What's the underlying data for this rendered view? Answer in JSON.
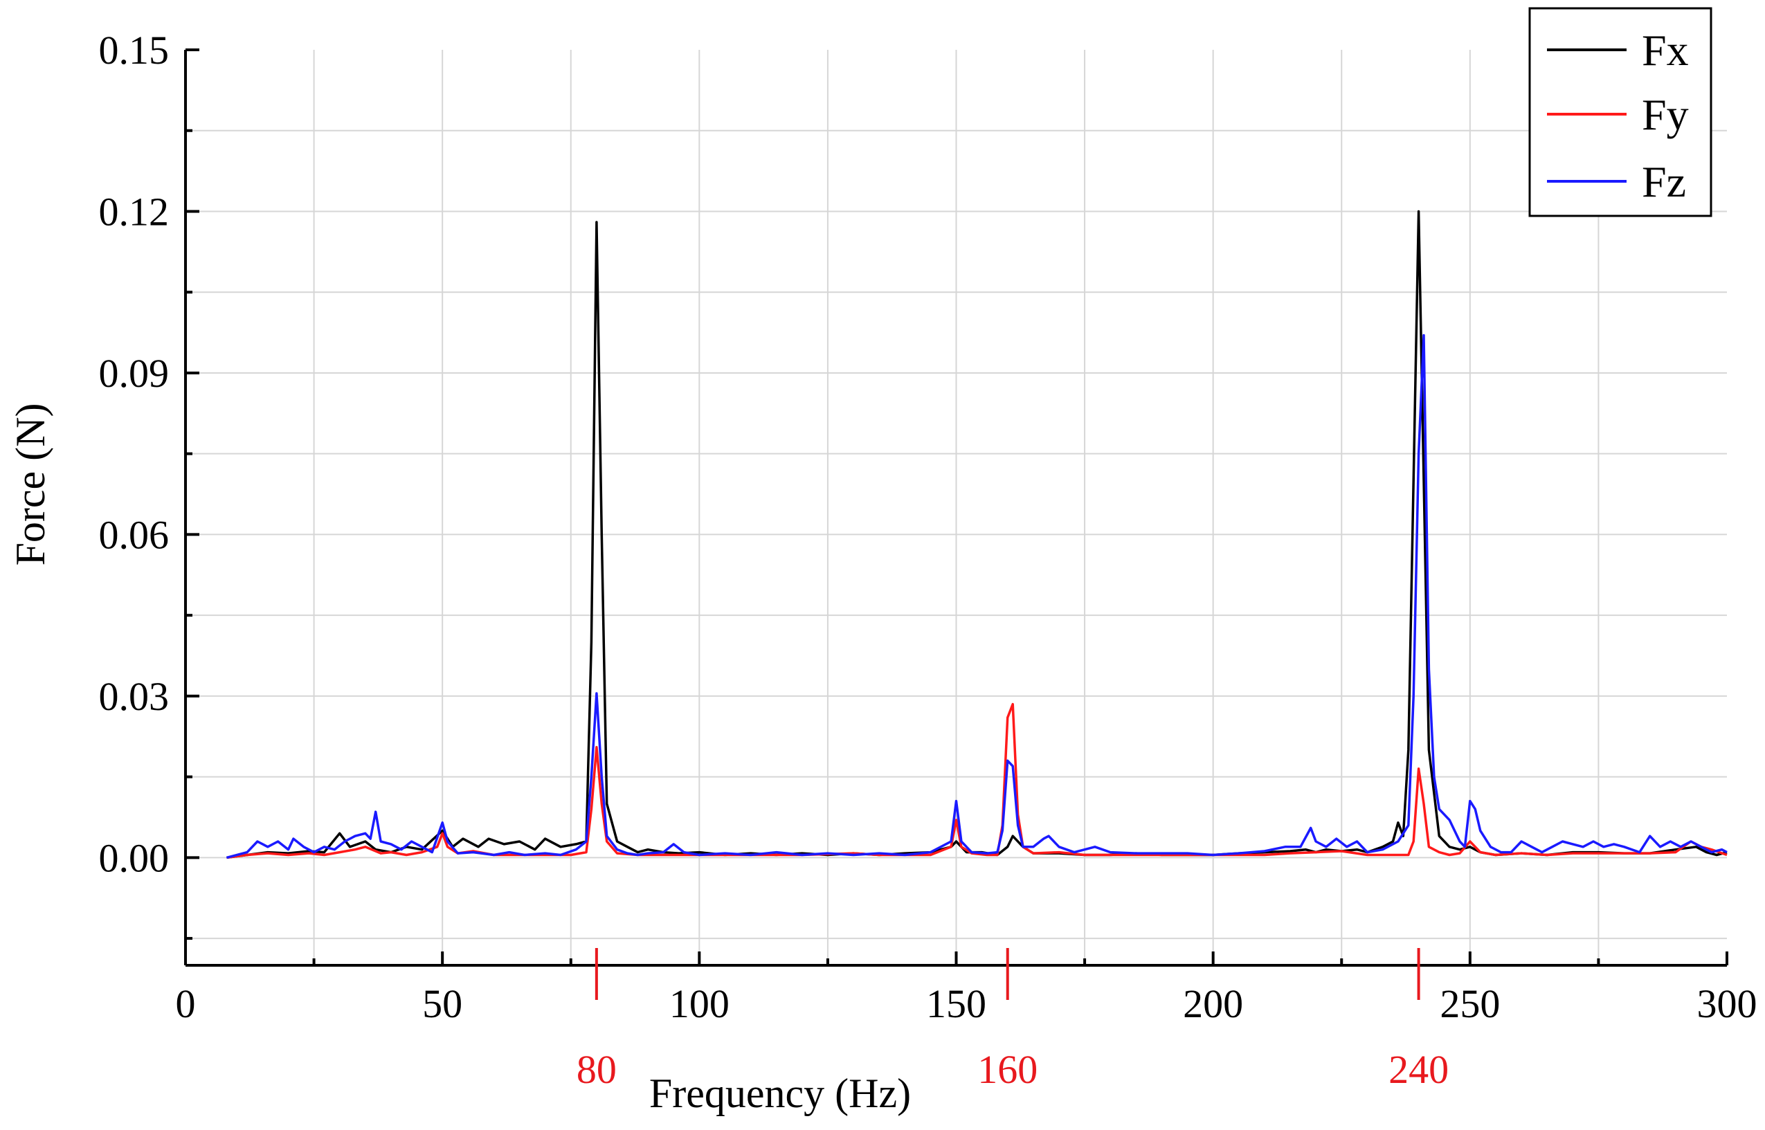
{
  "chart_data": {
    "type": "line",
    "xlabel": "Frequency (Hz)",
    "ylabel": "Force (N)",
    "xlim": [
      0,
      300
    ],
    "ylim": [
      -0.02,
      0.15
    ],
    "grid": true,
    "legend_position": "top-right",
    "x_ticks": [
      0,
      50,
      100,
      150,
      200,
      250,
      300
    ],
    "x_tick_labels": [
      "0",
      "50",
      "100",
      "150",
      "200",
      "250",
      "300"
    ],
    "y_ticks": [
      0.0,
      0.03,
      0.06,
      0.09,
      0.12,
      0.15
    ],
    "y_tick_labels": [
      "0.00",
      "0.03",
      "0.06",
      "0.09",
      "0.12",
      "0.15"
    ],
    "highlight_markers": [
      {
        "x": 80,
        "label": "80",
        "color": "#e8191e"
      },
      {
        "x": 160,
        "label": "160",
        "color": "#e8191e"
      },
      {
        "x": 240,
        "label": "240",
        "color": "#e8191e"
      }
    ],
    "series": [
      {
        "name": "Fx",
        "color": "#000000",
        "points": [
          [
            8,
            0
          ],
          [
            12,
            0.0005
          ],
          [
            16,
            0.001
          ],
          [
            20,
            0.0008
          ],
          [
            24,
            0.0012
          ],
          [
            27,
            0.001
          ],
          [
            30,
            0.0045
          ],
          [
            32,
            0.002
          ],
          [
            35,
            0.003
          ],
          [
            37,
            0.0015
          ],
          [
            40,
            0.001
          ],
          [
            43,
            0.002
          ],
          [
            46,
            0.0015
          ],
          [
            50,
            0.005
          ],
          [
            52,
            0.002
          ],
          [
            54,
            0.0035
          ],
          [
            57,
            0.002
          ],
          [
            59,
            0.0035
          ],
          [
            62,
            0.0025
          ],
          [
            65,
            0.003
          ],
          [
            68,
            0.0015
          ],
          [
            70,
            0.0035
          ],
          [
            73,
            0.002
          ],
          [
            76,
            0.0025
          ],
          [
            78,
            0.003
          ],
          [
            79,
            0.04
          ],
          [
            80,
            0.118
          ],
          [
            81,
            0.06
          ],
          [
            82,
            0.01
          ],
          [
            84,
            0.003
          ],
          [
            86,
            0.002
          ],
          [
            88,
            0.001
          ],
          [
            90,
            0.0015
          ],
          [
            93,
            0.001
          ],
          [
            96,
            0.0008
          ],
          [
            100,
            0.001
          ],
          [
            105,
            0.0005
          ],
          [
            110,
            0.0008
          ],
          [
            115,
            0.0005
          ],
          [
            120,
            0.0008
          ],
          [
            125,
            0.0005
          ],
          [
            130,
            0.0008
          ],
          [
            135,
            0.0005
          ],
          [
            140,
            0.0008
          ],
          [
            145,
            0.001
          ],
          [
            149,
            0.002
          ],
          [
            150,
            0.003
          ],
          [
            152,
            0.001
          ],
          [
            155,
            0.001
          ],
          [
            158,
            0.0005
          ],
          [
            160,
            0.002
          ],
          [
            161,
            0.004
          ],
          [
            163,
            0.002
          ],
          [
            165,
            0.0008
          ],
          [
            170,
            0.0008
          ],
          [
            175,
            0.0005
          ],
          [
            180,
            0.0005
          ],
          [
            185,
            0.0008
          ],
          [
            190,
            0.0005
          ],
          [
            195,
            0.0005
          ],
          [
            200,
            0.0005
          ],
          [
            205,
            0.0008
          ],
          [
            210,
            0.001
          ],
          [
            215,
            0.0012
          ],
          [
            218,
            0.0015
          ],
          [
            220,
            0.001
          ],
          [
            222,
            0.0015
          ],
          [
            225,
            0.0012
          ],
          [
            228,
            0.0015
          ],
          [
            230,
            0.001
          ],
          [
            233,
            0.002
          ],
          [
            235,
            0.003
          ],
          [
            236,
            0.0065
          ],
          [
            237,
            0.004
          ],
          [
            238,
            0.02
          ],
          [
            239,
            0.07
          ],
          [
            240,
            0.12
          ],
          [
            241,
            0.07
          ],
          [
            242,
            0.02
          ],
          [
            244,
            0.004
          ],
          [
            246,
            0.002
          ],
          [
            248,
            0.0015
          ],
          [
            250,
            0.002
          ],
          [
            252,
            0.001
          ],
          [
            255,
            0.0005
          ],
          [
            260,
            0.0008
          ],
          [
            265,
            0.0005
          ],
          [
            270,
            0.001
          ],
          [
            275,
            0.001
          ],
          [
            280,
            0.0008
          ],
          [
            285,
            0.0008
          ],
          [
            290,
            0.0015
          ],
          [
            294,
            0.002
          ],
          [
            296,
            0.001
          ],
          [
            298,
            0.0005
          ],
          [
            300,
            0.001
          ]
        ]
      },
      {
        "name": "Fy",
        "color": "#ff1a1a",
        "points": [
          [
            8,
            0
          ],
          [
            12,
            0.0005
          ],
          [
            16,
            0.0008
          ],
          [
            20,
            0.0005
          ],
          [
            24,
            0.0008
          ],
          [
            27,
            0.0005
          ],
          [
            30,
            0.001
          ],
          [
            33,
            0.0015
          ],
          [
            35,
            0.002
          ],
          [
            38,
            0.0008
          ],
          [
            40,
            0.001
          ],
          [
            43,
            0.0005
          ],
          [
            46,
            0.001
          ],
          [
            49,
            0.002
          ],
          [
            50,
            0.0045
          ],
          [
            51,
            0.002
          ],
          [
            53,
            0.0008
          ],
          [
            56,
            0.0012
          ],
          [
            60,
            0.0005
          ],
          [
            65,
            0.0005
          ],
          [
            70,
            0.0005
          ],
          [
            75,
            0.0005
          ],
          [
            78,
            0.001
          ],
          [
            79,
            0.009
          ],
          [
            80,
            0.0205
          ],
          [
            81,
            0.01
          ],
          [
            82,
            0.003
          ],
          [
            84,
            0.0008
          ],
          [
            88,
            0.0005
          ],
          [
            95,
            0.0005
          ],
          [
            100,
            0.0005
          ],
          [
            110,
            0.0005
          ],
          [
            120,
            0.0005
          ],
          [
            130,
            0.0008
          ],
          [
            135,
            0.0005
          ],
          [
            140,
            0.0005
          ],
          [
            145,
            0.0005
          ],
          [
            149,
            0.002
          ],
          [
            150,
            0.007
          ],
          [
            151,
            0.002
          ],
          [
            153,
            0.0008
          ],
          [
            156,
            0.0005
          ],
          [
            158,
            0.0005
          ],
          [
            159,
            0.006
          ],
          [
            160,
            0.026
          ],
          [
            161,
            0.0285
          ],
          [
            162,
            0.008
          ],
          [
            163,
            0.002
          ],
          [
            165,
            0.0008
          ],
          [
            170,
            0.001
          ],
          [
            175,
            0.0005
          ],
          [
            180,
            0.0005
          ],
          [
            190,
            0.0005
          ],
          [
            200,
            0.0005
          ],
          [
            210,
            0.0005
          ],
          [
            215,
            0.0008
          ],
          [
            220,
            0.001
          ],
          [
            225,
            0.0012
          ],
          [
            230,
            0.0005
          ],
          [
            235,
            0.0005
          ],
          [
            238,
            0.0005
          ],
          [
            239,
            0.003
          ],
          [
            240,
            0.0165
          ],
          [
            241,
            0.01
          ],
          [
            242,
            0.002
          ],
          [
            244,
            0.001
          ],
          [
            246,
            0.0005
          ],
          [
            248,
            0.0008
          ],
          [
            250,
            0.003
          ],
          [
            252,
            0.001
          ],
          [
            255,
            0.0005
          ],
          [
            260,
            0.0008
          ],
          [
            265,
            0.0005
          ],
          [
            270,
            0.0008
          ],
          [
            275,
            0.0008
          ],
          [
            280,
            0.0008
          ],
          [
            285,
            0.0008
          ],
          [
            290,
            0.001
          ],
          [
            293,
            0.003
          ],
          [
            295,
            0.002
          ],
          [
            297,
            0.0015
          ],
          [
            300,
            0.0005
          ]
        ]
      },
      {
        "name": "Fz",
        "color": "#1a1aff",
        "points": [
          [
            8,
            0
          ],
          [
            12,
            0.001
          ],
          [
            14,
            0.003
          ],
          [
            16,
            0.002
          ],
          [
            18,
            0.003
          ],
          [
            20,
            0.0015
          ],
          [
            21,
            0.0035
          ],
          [
            23,
            0.002
          ],
          [
            25,
            0.001
          ],
          [
            27,
            0.002
          ],
          [
            29,
            0.0015
          ],
          [
            31,
            0.003
          ],
          [
            33,
            0.004
          ],
          [
            35,
            0.0045
          ],
          [
            36,
            0.0035
          ],
          [
            37,
            0.0085
          ],
          [
            38,
            0.003
          ],
          [
            40,
            0.0025
          ],
          [
            42,
            0.0015
          ],
          [
            44,
            0.003
          ],
          [
            46,
            0.002
          ],
          [
            48,
            0.001
          ],
          [
            50,
            0.0065
          ],
          [
            51,
            0.003
          ],
          [
            53,
            0.0008
          ],
          [
            56,
            0.001
          ],
          [
            60,
            0.0005
          ],
          [
            63,
            0.001
          ],
          [
            66,
            0.0005
          ],
          [
            70,
            0.0008
          ],
          [
            73,
            0.0005
          ],
          [
            76,
            0.0015
          ],
          [
            78,
            0.003
          ],
          [
            79,
            0.015
          ],
          [
            80,
            0.0305
          ],
          [
            81,
            0.015
          ],
          [
            82,
            0.004
          ],
          [
            84,
            0.0015
          ],
          [
            86,
            0.0008
          ],
          [
            88,
            0.0005
          ],
          [
            90,
            0.0008
          ],
          [
            93,
            0.001
          ],
          [
            95,
            0.0025
          ],
          [
            97,
            0.001
          ],
          [
            100,
            0.0005
          ],
          [
            105,
            0.0008
          ],
          [
            110,
            0.0005
          ],
          [
            115,
            0.001
          ],
          [
            120,
            0.0005
          ],
          [
            125,
            0.0008
          ],
          [
            130,
            0.0005
          ],
          [
            135,
            0.0008
          ],
          [
            140,
            0.0005
          ],
          [
            145,
            0.001
          ],
          [
            149,
            0.003
          ],
          [
            150,
            0.0105
          ],
          [
            151,
            0.003
          ],
          [
            153,
            0.001
          ],
          [
            156,
            0.0008
          ],
          [
            158,
            0.001
          ],
          [
            159,
            0.005
          ],
          [
            160,
            0.018
          ],
          [
            161,
            0.017
          ],
          [
            162,
            0.006
          ],
          [
            163,
            0.002
          ],
          [
            165,
            0.002
          ],
          [
            167,
            0.0035
          ],
          [
            168,
            0.004
          ],
          [
            170,
            0.002
          ],
          [
            173,
            0.001
          ],
          [
            175,
            0.0015
          ],
          [
            177,
            0.002
          ],
          [
            180,
            0.001
          ],
          [
            185,
            0.0008
          ],
          [
            190,
            0.0008
          ],
          [
            195,
            0.0008
          ],
          [
            200,
            0.0005
          ],
          [
            205,
            0.0008
          ],
          [
            210,
            0.0012
          ],
          [
            214,
            0.002
          ],
          [
            217,
            0.002
          ],
          [
            219,
            0.0055
          ],
          [
            220,
            0.003
          ],
          [
            222,
            0.002
          ],
          [
            224,
            0.0035
          ],
          [
            226,
            0.002
          ],
          [
            228,
            0.003
          ],
          [
            230,
            0.001
          ],
          [
            233,
            0.0015
          ],
          [
            236,
            0.003
          ],
          [
            238,
            0.006
          ],
          [
            239,
            0.03
          ],
          [
            240,
            0.075
          ],
          [
            241,
            0.097
          ],
          [
            242,
            0.035
          ],
          [
            243,
            0.015
          ],
          [
            244,
            0.009
          ],
          [
            246,
            0.007
          ],
          [
            248,
            0.003
          ],
          [
            249,
            0.002
          ],
          [
            250,
            0.0105
          ],
          [
            251,
            0.009
          ],
          [
            252,
            0.005
          ],
          [
            254,
            0.002
          ],
          [
            256,
            0.001
          ],
          [
            258,
            0.001
          ],
          [
            260,
            0.003
          ],
          [
            262,
            0.002
          ],
          [
            264,
            0.001
          ],
          [
            266,
            0.002
          ],
          [
            268,
            0.003
          ],
          [
            270,
            0.0025
          ],
          [
            272,
            0.002
          ],
          [
            274,
            0.003
          ],
          [
            276,
            0.002
          ],
          [
            278,
            0.0025
          ],
          [
            280,
            0.002
          ],
          [
            283,
            0.001
          ],
          [
            285,
            0.004
          ],
          [
            287,
            0.002
          ],
          [
            289,
            0.003
          ],
          [
            291,
            0.002
          ],
          [
            293,
            0.003
          ],
          [
            295,
            0.002
          ],
          [
            297,
            0.001
          ],
          [
            299,
            0.0015
          ],
          [
            300,
            0.001
          ]
        ]
      }
    ]
  }
}
